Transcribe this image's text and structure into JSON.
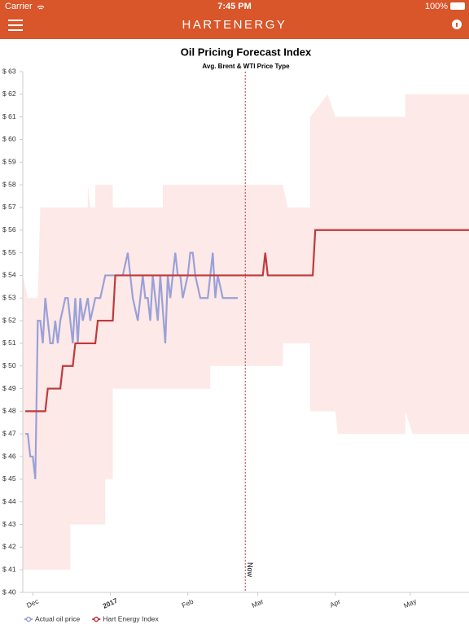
{
  "status_bar": {
    "carrier": "Carrier",
    "time": "7:45 PM",
    "battery": "100%"
  },
  "header": {
    "brand": "HARTENERGY"
  },
  "chart_data": {
    "type": "line",
    "title": "Oil Pricing Forecast Index",
    "subtitle": "Avg. Brent & WTI Price Type",
    "xlim": [
      0,
      178.5
    ],
    "ylim": [
      40,
      63
    ],
    "xticks": [
      {
        "value": 4,
        "label": "Dec"
      },
      {
        "value": 35,
        "label": "2017"
      },
      {
        "value": 66,
        "label": "Feb"
      },
      {
        "value": 94,
        "label": "Mar"
      },
      {
        "value": 125,
        "label": "Apr"
      },
      {
        "value": 155,
        "label": "May"
      }
    ],
    "yticks": [
      {
        "value": 40,
        "label": "$ 40"
      },
      {
        "value": 41,
        "label": "$ 41"
      },
      {
        "value": 42,
        "label": "$ 42"
      },
      {
        "value": 43,
        "label": "$ 43"
      },
      {
        "value": 44,
        "label": "$ 44"
      },
      {
        "value": 45,
        "label": "$ 45"
      },
      {
        "value": 46,
        "label": "$ 46"
      },
      {
        "value": 47,
        "label": "$ 47"
      },
      {
        "value": 48,
        "label": "$ 48"
      },
      {
        "value": 49,
        "label": "$ 49"
      },
      {
        "value": 50,
        "label": "$ 50"
      },
      {
        "value": 51,
        "label": "$ 51"
      },
      {
        "value": 52,
        "label": "$ 52"
      },
      {
        "value": 53,
        "label": "$ 53"
      },
      {
        "value": 54,
        "label": "$ 54"
      },
      {
        "value": 55,
        "label": "$ 55"
      },
      {
        "value": 56,
        "label": "$ 56"
      },
      {
        "value": 57,
        "label": "$ 57"
      },
      {
        "value": 58,
        "label": "$ 58"
      },
      {
        "value": 59,
        "label": "$ 59"
      },
      {
        "value": 60,
        "label": "$ 60"
      },
      {
        "value": 61,
        "label": "$ 61"
      },
      {
        "value": 62,
        "label": "$ 62"
      },
      {
        "value": 63,
        "label": "$ 63"
      }
    ],
    "grid": false,
    "now_line": {
      "x": 89,
      "label": "Now",
      "color": "#c0393b"
    },
    "band": {
      "color": "#fde9e7",
      "x": [
        0,
        2,
        6,
        7,
        19,
        19,
        26,
        26,
        27,
        29,
        29,
        33,
        33,
        36,
        36,
        56,
        56,
        75,
        75,
        104,
        104,
        106,
        115,
        115,
        122,
        125,
        126,
        153,
        153,
        156,
        178.5
      ],
      "low": [
        41,
        41,
        41,
        41,
        41,
        43,
        43,
        43,
        43,
        43,
        43,
        43,
        45,
        45,
        49,
        49,
        49,
        49,
        50,
        50,
        51,
        51,
        51,
        48,
        48,
        48,
        47,
        47,
        48,
        47,
        47
      ],
      "high": [
        54,
        53,
        53,
        57,
        57,
        57,
        57,
        58,
        57,
        57,
        58,
        58,
        58,
        58,
        57,
        57,
        58,
        58,
        58,
        58,
        58,
        57,
        57,
        61,
        62,
        61,
        61,
        61,
        62,
        62,
        62
      ]
    },
    "series": [
      {
        "name": "Actual oil price",
        "color": "#9aa0d8",
        "x": [
          1,
          2,
          3,
          4,
          5,
          6,
          7,
          8,
          9,
          10,
          11,
          12,
          13,
          14,
          15,
          17,
          18,
          19,
          20,
          21,
          22,
          23,
          24,
          26,
          27,
          29,
          31,
          33,
          34,
          36,
          38,
          40,
          42,
          43,
          44,
          46,
          47,
          48,
          49,
          50,
          51,
          52,
          53,
          54,
          55,
          57,
          58,
          59,
          60,
          61,
          62,
          63,
          64,
          66,
          67,
          68,
          69,
          71,
          72,
          74,
          76,
          77,
          78,
          80,
          81,
          83,
          86
        ],
        "values": [
          47,
          47,
          46,
          46,
          45,
          52,
          52,
          51,
          53,
          52,
          51,
          51,
          52,
          51,
          52,
          53,
          53,
          52,
          51,
          53,
          51,
          53,
          52,
          53,
          52,
          53,
          53,
          54,
          54,
          54,
          54,
          54,
          55,
          54,
          53,
          52,
          53,
          54,
          53,
          53,
          52,
          54,
          53,
          52,
          54,
          51,
          54,
          53,
          54,
          55,
          54,
          54,
          53,
          54,
          55,
          55,
          54,
          53,
          53,
          53,
          55,
          53,
          54,
          53,
          53,
          53,
          53
        ]
      },
      {
        "name": "Hart Energy Index",
        "color": "#c0393b",
        "x": [
          1,
          9,
          10,
          15,
          16,
          20,
          21,
          29,
          30,
          36,
          37,
          96,
          97,
          98,
          116,
          117,
          178.5
        ],
        "values": [
          48,
          48,
          49,
          49,
          50,
          50,
          51,
          51,
          52,
          52,
          54,
          54,
          55,
          54,
          54,
          56,
          56
        ]
      }
    ]
  }
}
